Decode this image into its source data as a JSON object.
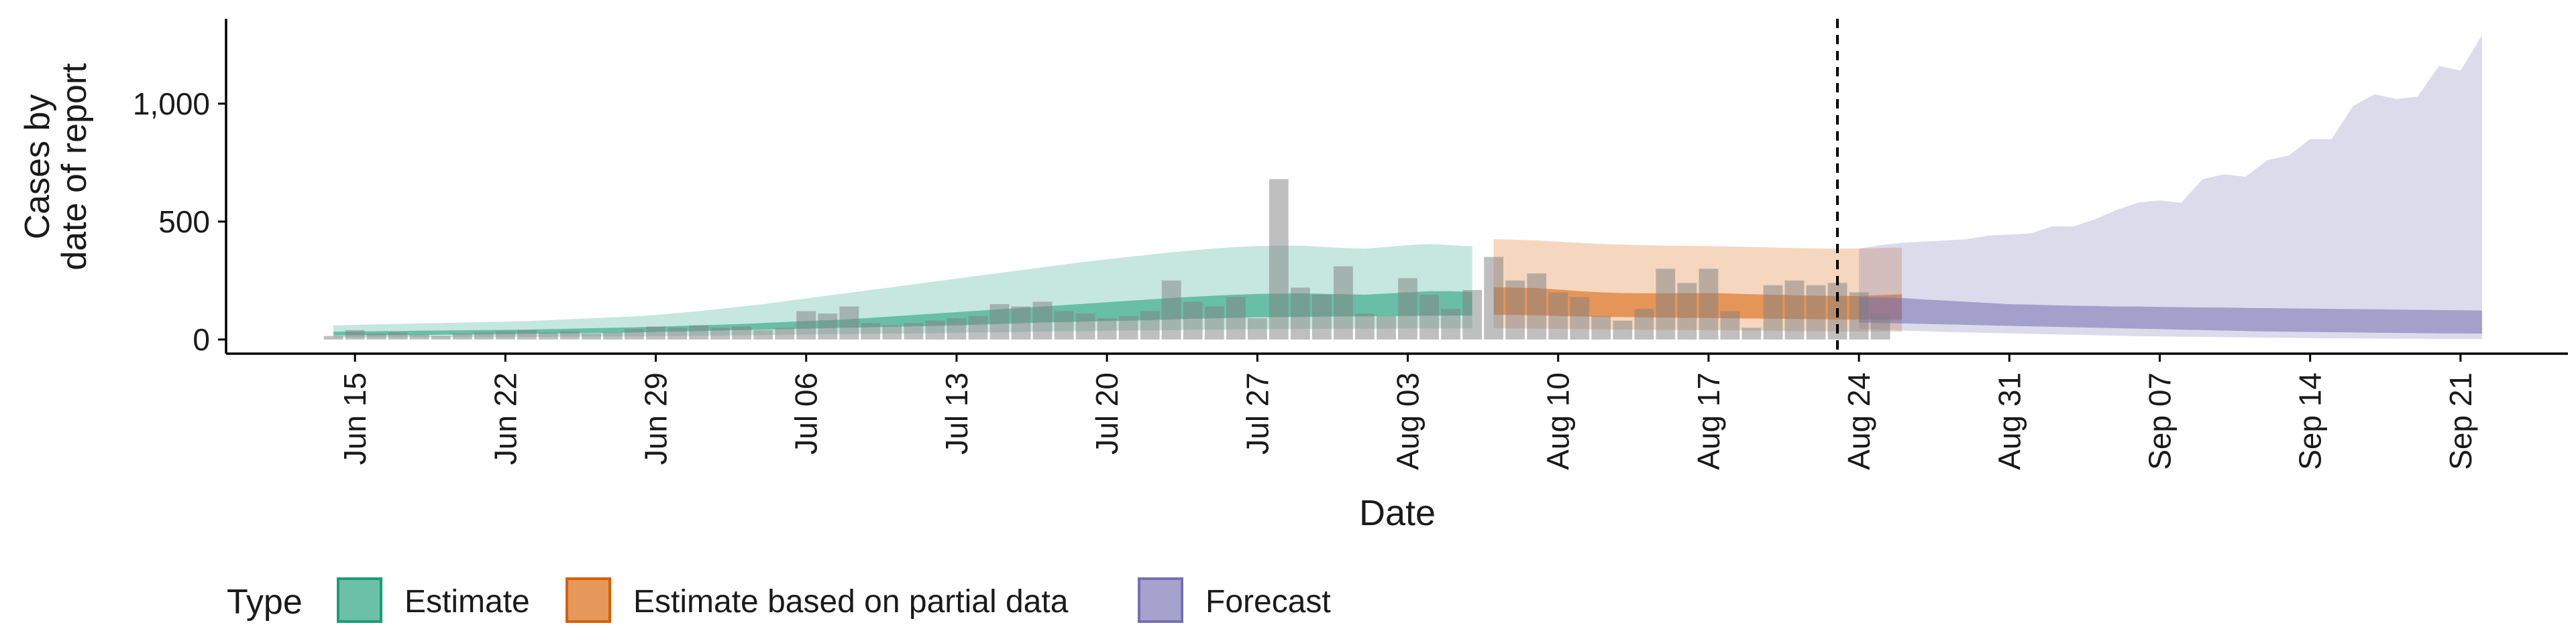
{
  "chart_data": {
    "type": "area",
    "xlabel": "Date",
    "ylabel_lines": [
      "Cases by",
      "date of report"
    ],
    "ylim": [
      -60,
      1360
    ],
    "xlim": [
      "2020-06-09",
      "2020-09-26"
    ],
    "y_ticks": [
      0,
      500,
      1000
    ],
    "y_tick_labels": [
      "0",
      "500",
      "1,000"
    ],
    "x_ticks": [
      "2020-06-15",
      "2020-06-22",
      "2020-06-29",
      "2020-07-06",
      "2020-07-13",
      "2020-07-20",
      "2020-07-27",
      "2020-08-03",
      "2020-08-10",
      "2020-08-17",
      "2020-08-24",
      "2020-08-31",
      "2020-09-07",
      "2020-09-14",
      "2020-09-21"
    ],
    "x_tick_labels": [
      "Jun 15",
      "Jun 22",
      "Jun 29",
      "Jul 06",
      "Jul 13",
      "Jul 20",
      "Jul 27",
      "Aug 03",
      "Aug 10",
      "Aug 17",
      "Aug 24",
      "Aug 31",
      "Sep 07",
      "Sep 14",
      "Sep 21"
    ],
    "forecast_date": "2020-08-23",
    "grid": false,
    "legend": {
      "title": "Type",
      "position": "bottom",
      "entries": [
        {
          "label": "Estimate",
          "color": "#1b9e77"
        },
        {
          "label": "Estimate based on partial data",
          "color": "#d95f02"
        },
        {
          "label": "Forecast",
          "color": "#7570b3"
        }
      ]
    },
    "reported_cases": {
      "start": "2020-06-14",
      "color": "#808080",
      "values": [
        15,
        40,
        25,
        30,
        20,
        15,
        25,
        30,
        35,
        40,
        30,
        35,
        25,
        30,
        45,
        55,
        50,
        60,
        50,
        55,
        40,
        50,
        120,
        110,
        140,
        70,
        60,
        70,
        80,
        90,
        100,
        150,
        140,
        160,
        120,
        110,
        90,
        100,
        120,
        250,
        160,
        140,
        180,
        90,
        680,
        220,
        190,
        310,
        110,
        100,
        260,
        190,
        130,
        210,
        350,
        250,
        280,
        200,
        180,
        100,
        80,
        130,
        300,
        240,
        300,
        120,
        50,
        230,
        250,
        230,
        240,
        200,
        110
      ]
    },
    "series": [
      {
        "type": "Estimate",
        "color": "#1b9e77",
        "start": "2020-06-14",
        "inner_lower": [
          17,
          18,
          18,
          19,
          19,
          20,
          21,
          22,
          23,
          24,
          25,
          26,
          27,
          28,
          30,
          32,
          34,
          36,
          38,
          40,
          42,
          44,
          46,
          48,
          50,
          52,
          54,
          56,
          58,
          60,
          63,
          66,
          69,
          72,
          74,
          76,
          78,
          80,
          82,
          85,
          88,
          90,
          92,
          94,
          95,
          96,
          97,
          98,
          98,
          99,
          100,
          101,
          102,
          102
        ],
        "inner_upper": [
          33,
          34,
          35,
          36,
          37,
          38,
          39,
          40,
          41,
          42,
          44,
          46,
          48,
          50,
          52,
          54,
          57,
          60,
          63,
          66,
          70,
          74,
          78,
          82,
          86,
          92,
          98,
          104,
          110,
          116,
          122,
          128,
          134,
          140,
          146,
          152,
          158,
          164,
          170,
          176,
          181,
          186,
          190,
          193,
          195,
          196,
          194,
          192,
          190,
          195,
          200,
          205,
          205,
          202
        ],
        "outer_lower": [
          8,
          8,
          8,
          9,
          9,
          9,
          10,
          10,
          10,
          11,
          11,
          12,
          12,
          13,
          13,
          14,
          15,
          16,
          17,
          18,
          19,
          20,
          21,
          22,
          23,
          24,
          25,
          26,
          27,
          28,
          30,
          31,
          32,
          34,
          35,
          36,
          37,
          38,
          39,
          40,
          41,
          42,
          43,
          44,
          44,
          45,
          45,
          46,
          46,
          46,
          47,
          47,
          47,
          47
        ],
        "outer_upper": [
          60,
          62,
          64,
          66,
          68,
          70,
          72,
          74,
          76,
          78,
          82,
          86,
          90,
          94,
          98,
          104,
          112,
          120,
          130,
          140,
          150,
          162,
          174,
          186,
          198,
          210,
          222,
          234,
          246,
          258,
          270,
          282,
          294,
          306,
          318,
          330,
          340,
          350,
          360,
          370,
          378,
          386,
          392,
          396,
          398,
          398,
          393,
          388,
          385,
          392,
          400,
          405,
          400,
          395
        ]
      },
      {
        "type": "Estimate based on partial data",
        "color": "#d95f02",
        "start": "2020-08-07",
        "inner_lower": [
          105,
          104,
          103,
          100,
          98,
          96,
          95,
          94,
          93,
          92,
          91,
          90,
          89,
          88,
          87,
          86,
          85,
          84,
          84,
          83
        ],
        "inner_upper": [
          222,
          220,
          218,
          212,
          205,
          200,
          197,
          196,
          196,
          197,
          197,
          195,
          192,
          190,
          188,
          186,
          185,
          185,
          188,
          192
        ],
        "outer_lower": [
          48,
          47,
          46,
          45,
          44,
          43,
          42,
          41,
          41,
          40,
          40,
          39,
          38,
          37,
          36,
          35,
          34,
          34,
          34,
          33
        ],
        "outer_upper": [
          425,
          423,
          420,
          415,
          410,
          405,
          402,
          400,
          398,
          397,
          396,
          394,
          392,
          390,
          388,
          386,
          385,
          386,
          388,
          390
        ]
      },
      {
        "type": "Forecast",
        "color": "#7570b3",
        "start": "2020-08-24",
        "inner_lower": [
          72,
          70,
          68,
          66,
          64,
          62,
          60,
          58,
          56,
          54,
          52,
          50,
          48,
          46,
          44,
          42,
          40,
          38,
          36,
          34,
          33,
          32,
          31,
          30,
          29,
          28,
          27,
          26,
          26,
          25
        ],
        "inner_upper": [
          180,
          178,
          176,
          170,
          165,
          160,
          155,
          150,
          148,
          145,
          143,
          142,
          140,
          140,
          138,
          137,
          136,
          135,
          134,
          133,
          132,
          131,
          130,
          129,
          128,
          127,
          126,
          125,
          124,
          123
        ],
        "outer_lower": [
          45,
          42,
          38,
          35,
          32,
          30,
          28,
          26,
          24,
          22,
          20,
          18,
          16,
          14,
          13,
          12,
          11,
          10,
          9,
          8,
          7,
          6,
          5,
          5,
          4,
          3,
          3,
          2,
          2,
          2
        ],
        "outer_upper": [
          385,
          400,
          410,
          415,
          420,
          425,
          440,
          445,
          450,
          480,
          480,
          510,
          550,
          580,
          590,
          580,
          680,
          700,
          690,
          760,
          780,
          850,
          850,
          990,
          1040,
          1020,
          1030,
          1160,
          1140,
          1290
        ]
      }
    ]
  }
}
